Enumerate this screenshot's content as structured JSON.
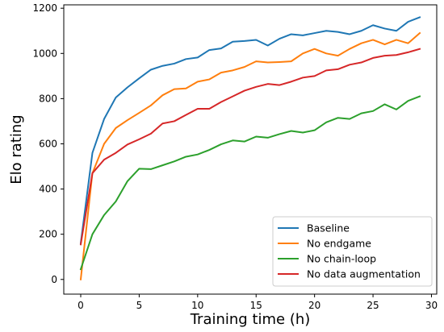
{
  "chart_data": {
    "type": "line",
    "title": "",
    "xlabel": "Training time (h)",
    "ylabel": "Elo rating",
    "xlim": [
      -1.45,
      30.45
    ],
    "ylim": [
      -65,
      1215
    ],
    "xticks": [
      0,
      5,
      10,
      15,
      20,
      25,
      30
    ],
    "yticks": [
      0,
      200,
      400,
      600,
      800,
      1000,
      1200
    ],
    "grid": false,
    "legend_position": "bottom-right",
    "x": [
      0,
      1,
      2,
      3,
      4,
      5,
      6,
      7,
      8,
      9,
      10,
      11,
      12,
      13,
      14,
      15,
      16,
      17,
      18,
      19,
      20,
      21,
      22,
      23,
      24,
      25,
      26,
      27,
      28,
      29
    ],
    "series": [
      {
        "name": "Baseline",
        "color": "#1f77b4",
        "values": [
          160,
          560,
          710,
          805,
          850,
          890,
          928,
          945,
          955,
          975,
          982,
          1015,
          1022,
          1052,
          1055,
          1060,
          1035,
          1065,
          1085,
          1080,
          1090,
          1100,
          1095,
          1085,
          1100,
          1125,
          1110,
          1100,
          1140,
          1160
        ]
      },
      {
        "name": "No endgame",
        "color": "#ff7f0e",
        "values": [
          0,
          470,
          600,
          670,
          705,
          737,
          770,
          815,
          842,
          845,
          875,
          885,
          915,
          925,
          940,
          965,
          960,
          962,
          965,
          1000,
          1020,
          1000,
          990,
          1020,
          1045,
          1060,
          1040,
          1060,
          1045,
          1090
        ]
      },
      {
        "name": "No chain-loop",
        "color": "#2ca02c",
        "values": [
          45,
          200,
          285,
          345,
          435,
          490,
          488,
          505,
          522,
          543,
          553,
          573,
          598,
          615,
          610,
          632,
          627,
          643,
          657,
          650,
          660,
          695,
          715,
          710,
          735,
          745,
          775,
          752,
          790,
          810
        ]
      },
      {
        "name": "No data augmentation",
        "color": "#d62728",
        "values": [
          155,
          470,
          530,
          560,
          597,
          620,
          645,
          690,
          700,
          728,
          755,
          755,
          785,
          810,
          835,
          852,
          865,
          860,
          875,
          893,
          900,
          925,
          930,
          950,
          960,
          980,
          990,
          993,
          1005,
          1020
        ]
      }
    ]
  }
}
